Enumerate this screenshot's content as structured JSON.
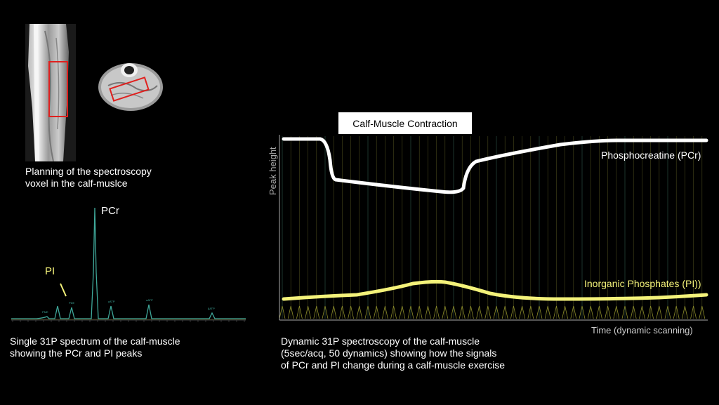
{
  "mri": {
    "caption_lines": [
      "Planning of the spectroscopy",
      "voxel in the calf-muslce"
    ]
  },
  "spectrum": {
    "pcr_label": "PCr",
    "pi_label": "PI",
    "caption_lines": [
      "Single 31P spectrum of the calf-muscle",
      "showing the PCr and PI peaks"
    ]
  },
  "dynamic": {
    "contraction_label": "Calf-Muscle Contraction",
    "ylabel": "Peak height",
    "xlabel": "Time (dynamic scanning)",
    "pcr_series_label": "Phosphocreatine (PCr)",
    "pi_series_label": "Inorganic Phosphates (PI))",
    "caption_lines": [
      "Dynamic 31P spectroscopy of the calf-muscle",
      "(5sec/acq, 50 dynamics) showing how the signals",
      "of PCr and PI change during a calf-muscle exercise"
    ]
  },
  "colors": {
    "pi_yellow": "#f4f27a",
    "pcr_white": "#ffffff",
    "voxel_red": "#e0201e",
    "spectrum_green": "#3fa89a"
  }
}
